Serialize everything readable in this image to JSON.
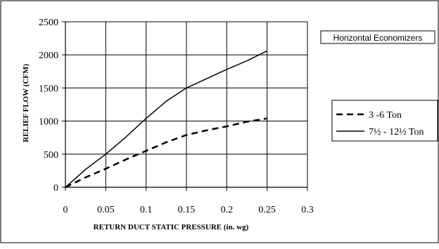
{
  "chart_data": {
    "type": "line",
    "title": "Horizontal Economizers",
    "xlabel": "RETURN DUCT STATIC PRESSURE (in. wg)",
    "ylabel": "RELIEF FLOW (CFM)",
    "xlim": [
      0,
      0.3
    ],
    "ylim": [
      0,
      2500
    ],
    "x_ticks": [
      "0",
      "0.05",
      "0.1",
      "0.15",
      "0.2",
      "0.25",
      "0.3"
    ],
    "y_ticks": [
      "0",
      "500",
      "1000",
      "1500",
      "2000",
      "2500"
    ],
    "grid": true,
    "legend_position": "right",
    "series": [
      {
        "name": "3 -6 Ton",
        "style": "dashed",
        "color": "#000000",
        "x": [
          0,
          0.025,
          0.05,
          0.075,
          0.1,
          0.125,
          0.15,
          0.175,
          0.2,
          0.225,
          0.25
        ],
        "y": [
          0,
          150,
          280,
          420,
          550,
          680,
          790,
          860,
          920,
          990,
          1040
        ]
      },
      {
        "name": "7½ - 12½ Ton",
        "style": "solid",
        "color": "#000000",
        "x": [
          0,
          0.025,
          0.05,
          0.075,
          0.1,
          0.125,
          0.15,
          0.175,
          0.2,
          0.225,
          0.25
        ],
        "y": [
          0,
          270,
          500,
          760,
          1040,
          1300,
          1500,
          1640,
          1780,
          1910,
          2060
        ]
      }
    ]
  }
}
